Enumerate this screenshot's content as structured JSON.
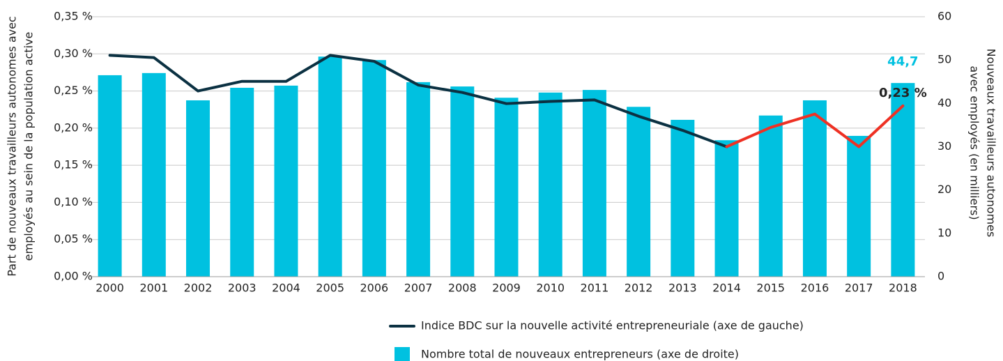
{
  "chart_data": {
    "type": "bar-line",
    "categories": [
      "2000",
      "2001",
      "2002",
      "2003",
      "2004",
      "2005",
      "2006",
      "2007",
      "2008",
      "2009",
      "2010",
      "2011",
      "2012",
      "2013",
      "2014",
      "2015",
      "2016",
      "2017",
      "2018"
    ],
    "series": [
      {
        "name": "Indice BDC sur la nouvelle activité entrepreneuriale (axe de gauche)",
        "kind": "line",
        "axis": "y",
        "color": "#0b3142",
        "recent_color": "#ee3124",
        "recent_from": "2014",
        "values": [
          0.298,
          0.295,
          0.25,
          0.263,
          0.263,
          0.298,
          0.29,
          0.258,
          0.248,
          0.233,
          0.236,
          0.238,
          0.216,
          0.197,
          0.175,
          0.201,
          0.219,
          0.175,
          0.23
        ],
        "value_labels": [
          null,
          null,
          null,
          null,
          null,
          null,
          null,
          null,
          null,
          null,
          null,
          null,
          null,
          null,
          null,
          null,
          null,
          null,
          "0,23 %"
        ]
      },
      {
        "name": "Nombre total de nouveaux entrepreneurs (axe de droite)",
        "kind": "bar",
        "axis": "y2",
        "color": "#00c1e0",
        "label_color": "#00c1e0",
        "values": [
          46.5,
          47.0,
          40.7,
          43.6,
          44.1,
          50.8,
          50.0,
          44.9,
          43.9,
          41.3,
          42.5,
          43.1,
          39.2,
          36.2,
          31.5,
          37.2,
          40.7,
          32.5,
          44.7
        ],
        "value_labels": [
          null,
          null,
          null,
          null,
          null,
          null,
          null,
          null,
          null,
          null,
          null,
          null,
          null,
          null,
          null,
          null,
          null,
          null,
          "44,7"
        ]
      }
    ],
    "ylabel": [
      "Part de nouveaux travailleurs autonomes avec",
      "employés au sein de la population active"
    ],
    "y2label": [
      "Nouveaux travailleurs autonomes",
      "avec employés (en milliers)"
    ],
    "ylim": [
      0,
      0.35
    ],
    "yticks": [
      {
        "value": 0,
        "label": "0,00 %"
      },
      {
        "value": 0.05,
        "label": "0,05 %"
      },
      {
        "value": 0.1,
        "label": "0,10 %"
      },
      {
        "value": 0.15,
        "label": "0,15 %"
      },
      {
        "value": 0.2,
        "label": "0,20 %"
      },
      {
        "value": 0.25,
        "label": "0,25 %"
      },
      {
        "value": 0.3,
        "label": "0,30 %"
      },
      {
        "value": 0.35,
        "label": "0,35 %"
      }
    ],
    "y2lim": [
      0,
      60
    ],
    "y2ticks": [
      0,
      10,
      20,
      30,
      40,
      50,
      60
    ],
    "grid": true,
    "legend": "bottom"
  }
}
